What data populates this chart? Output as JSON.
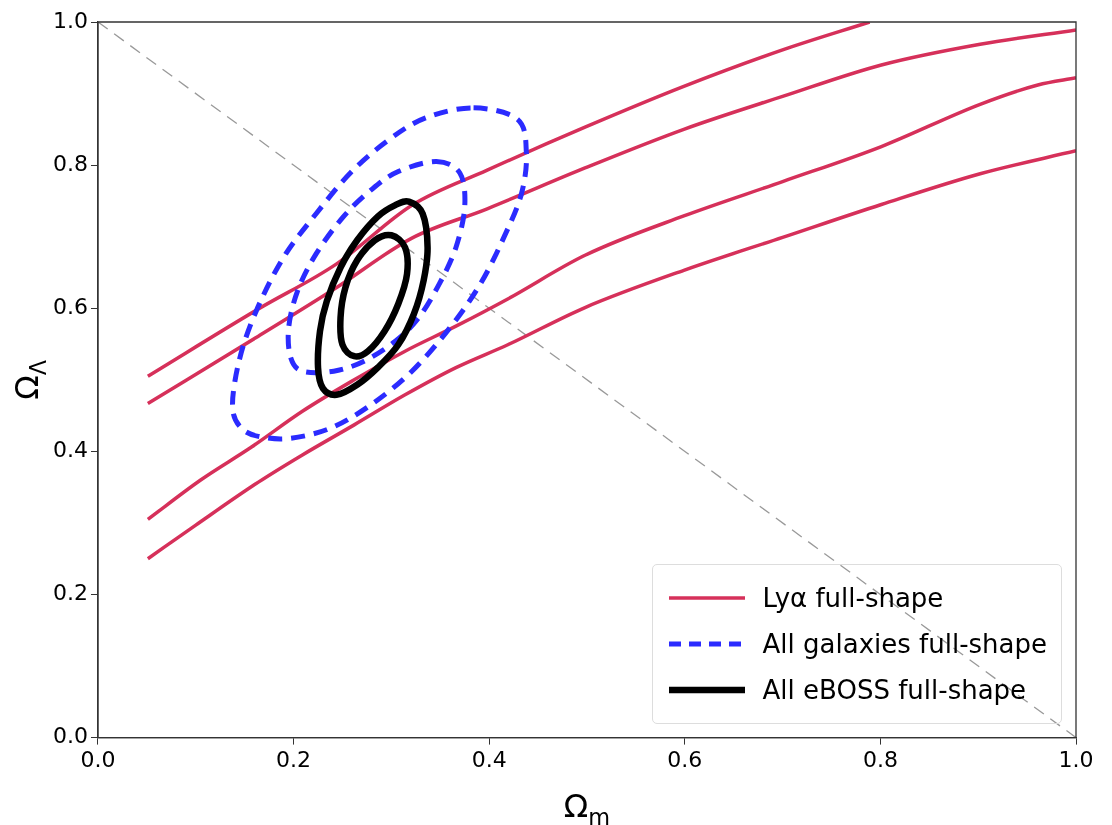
{
  "chart_data": {
    "type": "line",
    "xlabel": "Ω$_{m}$",
    "ylabel": "Ω$_{Λ}$",
    "xlim": [
      0,
      1
    ],
    "ylim": [
      0,
      1
    ],
    "xticks": [
      {
        "value": 0,
        "label": "0.0"
      },
      0.2,
      0.4,
      0.6,
      0.8,
      {
        "value": 1,
        "label": "1.0"
      }
    ],
    "yticks": [
      {
        "value": 0,
        "label": "0.0"
      },
      0.2,
      0.4,
      0.6,
      0.8,
      {
        "value": 1,
        "label": "1.0"
      }
    ],
    "grid": false,
    "legend": "bottom right",
    "marker": "none",
    "annotations": [
      "All galaxies full-shape",
      "All eBOSS full-shape"
    ],
    "series": [
      {
        "name": "Lyα full-shape",
        "color": "#d6305a",
        "line_style": "solid",
        "x": [
          0.051,
          0.164,
          0.244,
          0.321,
          0.398,
          0.498,
          0.599,
          0.7,
          0.789
        ],
        "values": [
          0.505,
          0.599,
          0.662,
          0.744,
          0.793,
          0.853,
          0.91,
          0.961,
          1.0
        ]
      },
      {
        "color": "#d6305a",
        "line_style": "solid",
        "x": [
          0.051,
          0.164,
          0.244,
          0.321,
          0.398,
          0.498,
          0.599,
          0.7,
          0.801,
          0.902,
          1.0
        ],
        "values": [
          0.467,
          0.561,
          0.629,
          0.698,
          0.739,
          0.796,
          0.85,
          0.896,
          0.94,
          0.969,
          0.989
        ]
      },
      {
        "color": "#d6305a",
        "line_style": "solid",
        "x": [
          0.051,
          0.105,
          0.157,
          0.209,
          0.262,
          0.314,
          0.366,
          0.419,
          0.498,
          0.599,
          0.7,
          0.801,
          0.902,
          0.961,
          1.0
        ],
        "values": [
          0.305,
          0.36,
          0.406,
          0.456,
          0.5,
          0.54,
          0.575,
          0.613,
          0.674,
          0.729,
          0.777,
          0.826,
          0.885,
          0.912,
          0.922
        ]
      },
      {
        "color": "#d6305a",
        "line_style": "solid",
        "x": [
          0.051,
          0.1,
          0.164,
          0.209,
          0.262,
          0.314,
          0.366,
          0.419,
          0.498,
          0.599,
          0.7,
          0.801,
          0.902,
          1.0
        ],
        "values": [
          0.25,
          0.297,
          0.357,
          0.395,
          0.437,
          0.479,
          0.517,
          0.549,
          0.601,
          0.653,
          0.699,
          0.745,
          0.788,
          0.82
        ]
      },
      {
        "color": "#999999",
        "line_style": "dashed",
        "x": [
          0,
          1
        ],
        "values": [
          1,
          0
        ]
      }
    ]
  }
}
